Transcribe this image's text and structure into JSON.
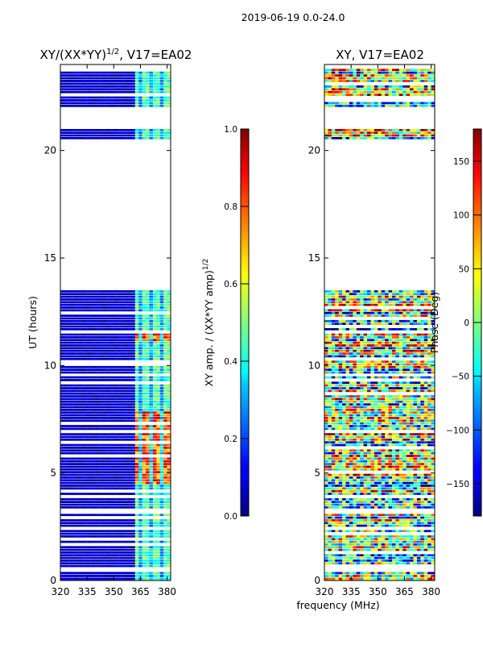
{
  "figure_title": "2019-06-19 0.0-24.0",
  "chart_data": [
    {
      "type": "heatmap",
      "panel": "amplitude",
      "title": "XY/(XX*YY)",
      "title_sup": "1/2",
      "title_suffix": ", V17=EA02",
      "xlabel": "frequency (MHz)",
      "ylabel": "UT (hours)",
      "xlim": [
        320,
        382
      ],
      "ylim": [
        0,
        24
      ],
      "xticks": [
        "320",
        "335",
        "350",
        "365",
        "380"
      ],
      "yticks": [
        "0",
        "5",
        "10",
        "15",
        "20"
      ],
      "colorbar": {
        "label": "XY amp. / (XX*YY amp)",
        "label_sup": "1/2",
        "range": [
          0.0,
          1.0
        ],
        "ticks": [
          "0.0",
          "0.2",
          "0.4",
          "0.6",
          "0.8",
          "1.0"
        ],
        "colormap": "jet"
      },
      "data_time_ranges_hours": [
        [
          0.0,
          0.4
        ],
        [
          0.6,
          3.1
        ],
        [
          3.2,
          9.5
        ],
        [
          9.6,
          13.5
        ],
        [
          20.5,
          21.0
        ],
        [
          22.0,
          23.8
        ]
      ],
      "high_amplitude_band_mhz": [
        362,
        382
      ],
      "peak_amplitude_hours": [
        [
          4.5,
          7.8
        ],
        [
          11.1,
          11.6
        ]
      ]
    },
    {
      "type": "heatmap",
      "panel": "phase",
      "title": "XY, V17=EA02",
      "xlabel": "frequency (MHz)",
      "ylabel": "",
      "xlim": [
        320,
        382
      ],
      "ylim": [
        0,
        24
      ],
      "xticks": [
        "320",
        "335",
        "350",
        "365",
        "380"
      ],
      "yticks": [
        "0",
        "5",
        "10",
        "15",
        "20"
      ],
      "colorbar": {
        "label": "Phase (Deg)",
        "range": [
          -180,
          180
        ],
        "ticks": [
          "−150",
          "−100",
          "−50",
          "0",
          "50",
          "100",
          "150"
        ],
        "tick_values": [
          -150,
          -100,
          -50,
          0,
          50,
          100,
          150
        ],
        "colormap": "jet"
      },
      "data_time_ranges_hours": [
        [
          0.0,
          0.4
        ],
        [
          0.6,
          3.1
        ],
        [
          3.2,
          9.5
        ],
        [
          9.6,
          13.5
        ],
        [
          20.5,
          21.0
        ],
        [
          22.0,
          23.8
        ]
      ]
    }
  ]
}
